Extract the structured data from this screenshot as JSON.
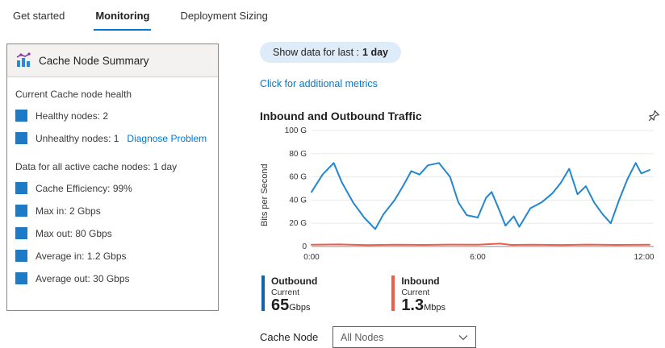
{
  "tabs": [
    {
      "label": "Get started",
      "active": false
    },
    {
      "label": "Monitoring",
      "active": true
    },
    {
      "label": "Deployment Sizing",
      "active": false
    }
  ],
  "summary_card": {
    "title": "Cache Node Summary",
    "health_section_label": "Current Cache node health",
    "healthy_nodes": "Healthy nodes: 2",
    "unhealthy_nodes": "Unhealthy nodes: 1",
    "diagnose_link": "Diagnose Problem",
    "data_section_label": "Data for all active cache nodes: 1 day",
    "metrics": [
      "Cache Efficiency: 99%",
      "Max in: 2 Gbps",
      "Max out: 80 Gbps",
      "Average in: 1.2 Gbps",
      "Average out: 30 Gbps"
    ]
  },
  "main": {
    "show_data_label": "Show data for last :",
    "show_data_value": "1 day",
    "metrics_link": "Click for additional metrics",
    "cache_node_label": "Cache Node",
    "cache_node_value": "All Nodes",
    "legend": [
      {
        "name": "Outbound",
        "sub": "Current",
        "value": "65",
        "unit": "Gbps",
        "color": "#1465a7"
      },
      {
        "name": "Inbound",
        "sub": "Current",
        "value": "1.3",
        "unit": "Mbps",
        "color": "#e8604c"
      }
    ]
  },
  "icons": {
    "card_header": "bar-chart-icon",
    "chart_pin": "pin-icon",
    "dropdown": "chevron-down-icon"
  },
  "colors": {
    "accent": "#0078d4",
    "outbound_line": "#2287cf",
    "inbound_line": "#e8604c",
    "bullet": "#1e7ac4",
    "pill_bg": "#deecf9"
  },
  "chart_data": {
    "type": "line",
    "title": "Inbound and Outbound Traffic",
    "xlabel": "",
    "ylabel": "Bits per Second",
    "ylim": [
      0,
      100
    ],
    "ytick_values": [
      100,
      80,
      60,
      40,
      20,
      0
    ],
    "yticks": [
      "100 G",
      "80 G",
      "60 G",
      "40 G",
      "20 G",
      "0"
    ],
    "xticks": [
      "0:00",
      "6:00",
      "12:00"
    ],
    "xtick_hours": [
      0,
      6,
      12
    ],
    "x_range_hours": [
      0,
      12.35
    ],
    "grid": true,
    "legend_position": "bottom",
    "series": [
      {
        "name": "Outbound",
        "color": "#2287cf",
        "x": [
          0,
          0.4,
          0.8,
          1.1,
          1.5,
          1.9,
          2.3,
          2.6,
          3.0,
          3.3,
          3.6,
          3.9,
          4.2,
          4.6,
          5.0,
          5.3,
          5.6,
          6.0,
          6.3,
          6.5,
          6.8,
          7.0,
          7.3,
          7.5,
          7.9,
          8.3,
          8.7,
          9.0,
          9.3,
          9.6,
          9.9,
          10.2,
          10.5,
          10.8,
          11.1,
          11.4,
          11.7,
          11.9,
          12.2
        ],
        "y": [
          47,
          62,
          72,
          55,
          38,
          25,
          15,
          28,
          40,
          52,
          65,
          62,
          70,
          72,
          60,
          38,
          27,
          25,
          42,
          47,
          30,
          18,
          26,
          17,
          33,
          38,
          46,
          55,
          67,
          45,
          52,
          38,
          28,
          20,
          40,
          58,
          72,
          63,
          66
        ]
      },
      {
        "name": "Inbound",
        "color": "#e8604c",
        "x": [
          0,
          1,
          2,
          3,
          4,
          5,
          6,
          6.8,
          7.2,
          8,
          9,
          10,
          11,
          12.2
        ],
        "y": [
          1.5,
          1.8,
          1.2,
          1.6,
          1.4,
          1.7,
          1.5,
          2.5,
          1.4,
          1.6,
          1.3,
          1.7,
          1.4,
          1.6
        ]
      }
    ]
  }
}
